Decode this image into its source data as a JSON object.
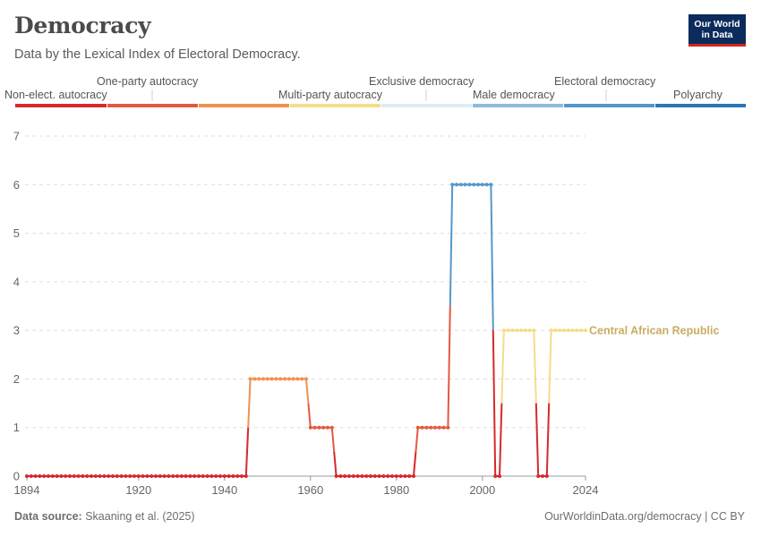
{
  "header": {
    "title": "Democracy",
    "subtitle": "Data by the Lexical Index of Electoral Democracy.",
    "logo_line1": "Our World",
    "logo_line2": "in Data"
  },
  "footer": {
    "source_label": "Data source:",
    "source_text": "Skaaning et al. (2025)",
    "right_text": "OurWorldinData.org/democracy | CC BY"
  },
  "colors": {
    "level_0": "#d8282d",
    "level_1": "#e4593e",
    "level_2": "#f09150",
    "level_3": "#f4dd8a",
    "level_4": "#ddecf5",
    "level_5": "#8dbcd8",
    "level_6": "#5697c9",
    "level_7": "#2e74b5",
    "series_label": "#c8ad62",
    "grid": "#dddddd",
    "axis_text": "#666666"
  },
  "chart_data": {
    "type": "line",
    "x_ticks": [
      1894,
      1920,
      1940,
      1960,
      1980,
      2000,
      2024
    ],
    "y_ticks": [
      0,
      1,
      2,
      3,
      4,
      5,
      6,
      7
    ],
    "xlim": [
      1894,
      2024
    ],
    "ylim": [
      0,
      7
    ],
    "grid": "horizontal dashed",
    "legend": {
      "placement": "top",
      "categories": [
        {
          "label": "Non-elect. autocracy",
          "level": 0,
          "label_row": "bottom"
        },
        {
          "label": "One-party autocracy",
          "level": 1,
          "label_row": "top"
        },
        {
          "label": "Multi-party autocracy",
          "level": 3,
          "label_row": "bottom"
        },
        {
          "label": "Exclusive democracy",
          "level": 4,
          "label_row": "top"
        },
        {
          "label": "Male democracy",
          "level": 5,
          "label_row": "bottom"
        },
        {
          "label": "Electoral democracy",
          "level": 6,
          "label_row": "top"
        },
        {
          "label": "Polyarchy",
          "level": 7,
          "label_row": "bottom"
        }
      ]
    },
    "series": [
      {
        "name": "Central African Republic",
        "segments": [
          {
            "start": 1894,
            "end": 1945,
            "value": 0
          },
          {
            "start": 1946,
            "end": 1959,
            "value": 2
          },
          {
            "start": 1960,
            "end": 1965,
            "value": 1
          },
          {
            "start": 1966,
            "end": 1984,
            "value": 0
          },
          {
            "start": 1985,
            "end": 1992,
            "value": 1
          },
          {
            "start": 1993,
            "end": 2002,
            "value": 6
          },
          {
            "start": 2003,
            "end": 2004,
            "value": 0
          },
          {
            "start": 2005,
            "end": 2012,
            "value": 3
          },
          {
            "start": 2013,
            "end": 2015,
            "value": 0
          },
          {
            "start": 2016,
            "end": 2024,
            "value": 3
          }
        ]
      }
    ]
  }
}
